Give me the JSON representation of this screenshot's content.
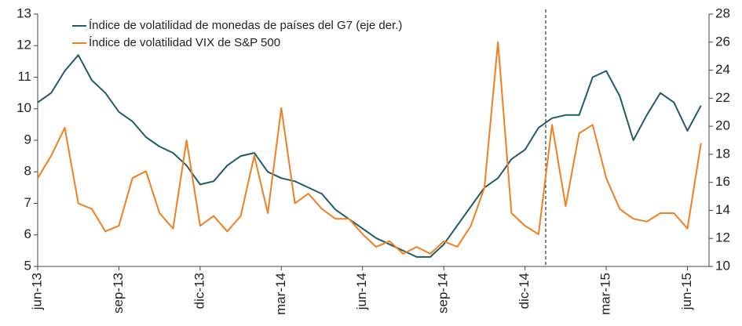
{
  "chart_data": {
    "type": "line",
    "categories": [
      "jun-13",
      null,
      null,
      null,
      null,
      null,
      "sep-13",
      null,
      null,
      null,
      null,
      null,
      "dic-13",
      null,
      null,
      null,
      null,
      null,
      "mar-14",
      null,
      null,
      null,
      null,
      null,
      "jun-14",
      null,
      null,
      null,
      null,
      null,
      "sep-14",
      null,
      null,
      null,
      null,
      null,
      "dic-14",
      null,
      null,
      null,
      null,
      null,
      "mar-15",
      null,
      null,
      null,
      null,
      null,
      "jun-15",
      null
    ],
    "series": [
      {
        "name": "Índice de volatilidad de monedas de países del G7 (eje der.)",
        "color": "#1f5c66",
        "axis": "y",
        "values": [
          10.2,
          10.5,
          11.2,
          11.7,
          10.9,
          10.5,
          9.9,
          9.6,
          9.1,
          8.8,
          8.6,
          8.2,
          7.6,
          7.7,
          8.2,
          8.5,
          8.6,
          8.0,
          7.8,
          7.7,
          7.5,
          7.3,
          6.8,
          6.5,
          6.2,
          5.9,
          5.7,
          5.5,
          5.3,
          5.3,
          5.7,
          6.3,
          6.9,
          7.5,
          7.8,
          8.4,
          8.7,
          9.4,
          9.7,
          9.8,
          9.8,
          11.0,
          11.2,
          10.4,
          9.0,
          9.8,
          10.5,
          10.2,
          9.3,
          10.1
        ]
      },
      {
        "name": "Índice de volatilidad VIX de S&P 500",
        "color": "#f07f22",
        "axis": "y2",
        "values": [
          16.3,
          17.9,
          19.9,
          14.5,
          14.1,
          12.5,
          12.9,
          16.3,
          16.8,
          13.8,
          12.7,
          19.0,
          12.9,
          13.6,
          12.5,
          13.6,
          17.9,
          13.8,
          21.3,
          14.5,
          15.2,
          14.1,
          13.4,
          13.4,
          12.3,
          11.4,
          11.8,
          10.9,
          11.4,
          10.9,
          11.8,
          11.4,
          12.9,
          15.6,
          26.0,
          13.8,
          12.9,
          12.3,
          20.1,
          14.3,
          19.5,
          20.1,
          16.3,
          14.1,
          13.4,
          13.2,
          13.8,
          13.8,
          12.7,
          18.8
        ]
      }
    ],
    "ylim": [
      5,
      13
    ],
    "yticks": [
      5,
      6,
      7,
      8,
      9,
      10,
      11,
      12,
      13
    ],
    "y2lim": [
      10,
      28
    ],
    "y2ticks": [
      10,
      12,
      14,
      16,
      18,
      20,
      22,
      24,
      26,
      28
    ],
    "legend": "top-left"
  }
}
